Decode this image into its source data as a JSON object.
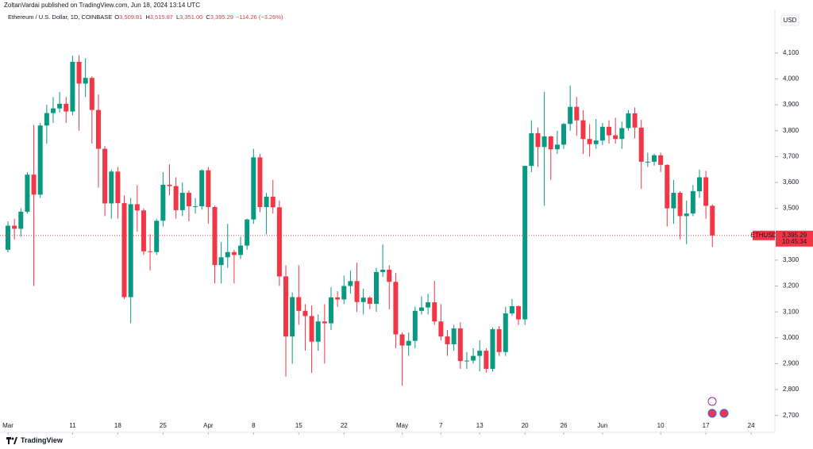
{
  "header": {
    "publisher": "ZoltanVardai published on TradingView.com, Jun 18, 2024 13:14 UTC",
    "symbol": "Ethereum / U.S. Dollar, 1D, COINBASE",
    "ohlc": [
      {
        "key": "O",
        "value": "3,509.81"
      },
      {
        "key": "H",
        "value": "3,515.87"
      },
      {
        "key": "L",
        "value": "3,351.00"
      },
      {
        "key": "C",
        "value": "3,395.29"
      }
    ],
    "change": "−114.26 (−3.26%)"
  },
  "brand": "TradingView",
  "chart_data": {
    "type": "candlestick",
    "x": [
      "Mar 1",
      "Mar 2",
      "Mar 3",
      "Mar 4",
      "Mar 5",
      "Mar 6",
      "Mar 7",
      "Mar 8",
      "Mar 9",
      "Mar 10",
      "Mar 11",
      "Mar 12",
      "Mar 13",
      "Mar 14",
      "Mar 15",
      "Mar 16",
      "Mar 17",
      "Mar 18",
      "Mar 19",
      "Mar 20",
      "Mar 21",
      "Mar 22",
      "Mar 23",
      "Mar 24",
      "Mar 25",
      "Mar 26",
      "Mar 27",
      "Mar 28",
      "Mar 29",
      "Mar 30",
      "Mar 31",
      "Apr 1",
      "Apr 2",
      "Apr 3",
      "Apr 4",
      "Apr 5",
      "Apr 6",
      "Apr 7",
      "Apr 8",
      "Apr 9",
      "Apr 10",
      "Apr 11",
      "Apr 12",
      "Apr 13",
      "Apr 14",
      "Apr 15",
      "Apr 16",
      "Apr 17",
      "Apr 18",
      "Apr 19",
      "Apr 20",
      "Apr 21",
      "Apr 22",
      "Apr 23",
      "Apr 24",
      "Apr 25",
      "Apr 26",
      "Apr 27",
      "Apr 28",
      "Apr 29",
      "Apr 30",
      "May 1",
      "May 2",
      "May 3",
      "May 4",
      "May 5",
      "May 6",
      "May 7",
      "May 8",
      "May 9",
      "May 10",
      "May 11",
      "May 12",
      "May 13",
      "May 14",
      "May 15",
      "May 16",
      "May 17",
      "May 18",
      "May 19",
      "May 20",
      "May 21",
      "May 22",
      "May 23",
      "May 24",
      "May 25",
      "May 26",
      "May 27",
      "May 28",
      "May 29",
      "May 30",
      "May 31",
      "Jun 1",
      "Jun 2",
      "Jun 3",
      "Jun 4",
      "Jun 5",
      "Jun 6",
      "Jun 7",
      "Jun 8",
      "Jun 9",
      "Jun 10",
      "Jun 11",
      "Jun 12",
      "Jun 13",
      "Jun 14",
      "Jun 15",
      "Jun 16",
      "Jun 17",
      "Jun 18"
    ],
    "series": [
      {
        "name": "ETHUSD",
        "up_color": "#089981",
        "down_color": "#f23645",
        "open": [
          3340,
          3433,
          3421,
          3487,
          3630,
          3553,
          3820,
          3868,
          3886,
          3904,
          3874,
          4066,
          3982,
          4004,
          3880,
          3730,
          3519,
          3642,
          3520,
          3157,
          3516,
          3492,
          3334,
          3331,
          3452,
          3591,
          3586,
          3493,
          3560,
          3508,
          3508,
          3647,
          3505,
          3281,
          3311,
          3331,
          3320,
          3356,
          3457,
          3697,
          3505,
          3545,
          3504,
          3237,
          3005,
          3157,
          3104,
          3084,
          2985,
          3063,
          3056,
          3156,
          3148,
          3200,
          3219,
          3138,
          3155,
          3131,
          3254,
          3263,
          3216,
          3013,
          2970,
          2988,
          3104,
          3117,
          3137,
          3063,
          3005,
          2975,
          3036,
          2910,
          2912,
          2930,
          2950,
          2880,
          3033,
          2945,
          3094,
          3122,
          3071,
          3664,
          3790,
          3737,
          3778,
          3728,
          3746,
          3826,
          3892,
          3840,
          3768,
          3748,
          3762,
          3815,
          3782,
          3768,
          3810,
          3867,
          3812,
          3680,
          3680,
          3705,
          3668,
          3500,
          3560,
          3470,
          3480,
          3566,
          3620,
          3509.81
        ],
        "high": [
          3450,
          3460,
          3500,
          3640,
          3822,
          3830,
          3900,
          3930,
          3950,
          3930,
          4090,
          4092,
          4080,
          4010,
          3940,
          3740,
          3650,
          3660,
          3550,
          3540,
          3590,
          3500,
          3400,
          3460,
          3640,
          3670,
          3620,
          3600,
          3570,
          3540,
          3650,
          3660,
          3510,
          3370,
          3440,
          3340,
          3390,
          3460,
          3730,
          3710,
          3560,
          3610,
          3530,
          3280,
          3175,
          3280,
          3130,
          3125,
          3090,
          3130,
          3195,
          3180,
          3240,
          3260,
          3290,
          3190,
          3160,
          3270,
          3360,
          3280,
          3250,
          3020,
          3020,
          3120,
          3160,
          3170,
          3220,
          3130,
          3030,
          3050,
          3060,
          2945,
          2960,
          2990,
          2960,
          3040,
          3045,
          3120,
          3150,
          3125,
          3665,
          3840,
          3812,
          3950,
          3780,
          3800,
          3830,
          3975,
          3930,
          3880,
          3825,
          3845,
          3830,
          3840,
          3850,
          3835,
          3880,
          3890,
          3842,
          3715,
          3711,
          3715,
          3670,
          3610,
          3566,
          3530,
          3590,
          3650,
          3645,
          3515.87
        ],
        "low": [
          3330,
          3380,
          3390,
          3480,
          3200,
          3540,
          3750,
          3830,
          3870,
          3830,
          3860,
          3800,
          3930,
          3750,
          3580,
          3470,
          3460,
          3460,
          3150,
          3056,
          3410,
          3320,
          3260,
          3320,
          3430,
          3550,
          3460,
          3470,
          3450,
          3480,
          3495,
          3440,
          3210,
          3210,
          3270,
          3210,
          3305,
          3340,
          3440,
          3485,
          3400,
          3480,
          3200,
          2850,
          2900,
          3050,
          2950,
          2865,
          2950,
          2900,
          3030,
          3120,
          3130,
          3170,
          3100,
          3090,
          3110,
          3100,
          3235,
          3110,
          2960,
          2815,
          2930,
          2960,
          3090,
          3090,
          3050,
          2990,
          2930,
          2950,
          2880,
          2880,
          2900,
          2870,
          2865,
          2870,
          2930,
          2930,
          3085,
          3050,
          3050,
          3640,
          3660,
          3510,
          3610,
          3710,
          3730,
          3800,
          3780,
          3710,
          3700,
          3730,
          3745,
          3750,
          3750,
          3730,
          3800,
          3770,
          3575,
          3660,
          3665,
          3640,
          3430,
          3440,
          3380,
          3362,
          3470,
          3540,
          3460,
          3351
        ],
        "close": [
          3433,
          3421,
          3487,
          3630,
          3553,
          3820,
          3868,
          3886,
          3904,
          3874,
          4066,
          3982,
          4004,
          3880,
          3730,
          3519,
          3642,
          3520,
          3157,
          3516,
          3492,
          3334,
          3331,
          3452,
          3591,
          3586,
          3493,
          3560,
          3508,
          3508,
          3647,
          3505,
          3281,
          3311,
          3331,
          3320,
          3356,
          3457,
          3697,
          3505,
          3545,
          3504,
          3237,
          3005,
          3157,
          3104,
          3084,
          2985,
          3063,
          3056,
          3156,
          3148,
          3200,
          3219,
          3138,
          3155,
          3131,
          3254,
          3263,
          3216,
          3013,
          2970,
          2988,
          3104,
          3117,
          3137,
          3063,
          3005,
          2975,
          3036,
          2910,
          2912,
          2930,
          2950,
          2880,
          3033,
          2945,
          3094,
          3122,
          3071,
          3664,
          3790,
          3737,
          3778,
          3728,
          3746,
          3826,
          3892,
          3840,
          3768,
          3748,
          3762,
          3815,
          3782,
          3768,
          3810,
          3867,
          3812,
          3680,
          3680,
          3705,
          3668,
          3500,
          3560,
          3470,
          3480,
          3566,
          3620,
          3509.81,
          3395.29
        ],
        "last_value_label": "3,395.29",
        "countdown": "10:45:34"
      }
    ],
    "currency": "USD",
    "ylim": [
      2650,
      4265
    ],
    "yticks": [
      {
        "value": 2700,
        "label": "2,700"
      },
      {
        "value": 2800,
        "label": "2,800"
      },
      {
        "value": 2900,
        "label": "2,900"
      },
      {
        "value": 3000,
        "label": "3,000"
      },
      {
        "value": 3100,
        "label": "3,100"
      },
      {
        "value": 3200,
        "label": "3,200"
      },
      {
        "value": 3300,
        "label": "3,300"
      },
      {
        "value": 3400,
        "label": "3,400"
      },
      {
        "value": 3500,
        "label": "3,500"
      },
      {
        "value": 3600,
        "label": "3,600"
      },
      {
        "value": 3700,
        "label": "3,700"
      },
      {
        "value": 3800,
        "label": "3,800"
      },
      {
        "value": 3900,
        "label": "3,900"
      },
      {
        "value": 4000,
        "label": "4,000"
      },
      {
        "value": 4100,
        "label": "4,100"
      }
    ],
    "xticks": [
      {
        "value": "Mar 1",
        "label": "Mar"
      },
      {
        "value": "Mar 11",
        "label": "11"
      },
      {
        "value": "Mar 18",
        "label": "18"
      },
      {
        "value": "Mar 25",
        "label": "25"
      },
      {
        "value": "Apr 1",
        "label": "Apr"
      },
      {
        "value": "Apr 8",
        "label": "8"
      },
      {
        "value": "Apr 15",
        "label": "15"
      },
      {
        "value": "Apr 22",
        "label": "22"
      },
      {
        "value": "May 1",
        "label": "May"
      },
      {
        "value": "May 7",
        "label": "7"
      },
      {
        "value": "May 13",
        "label": "13"
      },
      {
        "value": "May 20",
        "label": "20"
      },
      {
        "value": "May 26",
        "label": "26"
      },
      {
        "value": "Jun 1",
        "label": "Jun"
      },
      {
        "value": "Jun 10",
        "label": "10"
      },
      {
        "value": "Jun 17",
        "label": "17"
      },
      {
        "value": "Jun 24",
        "label": "24"
      }
    ],
    "grid": false
  }
}
